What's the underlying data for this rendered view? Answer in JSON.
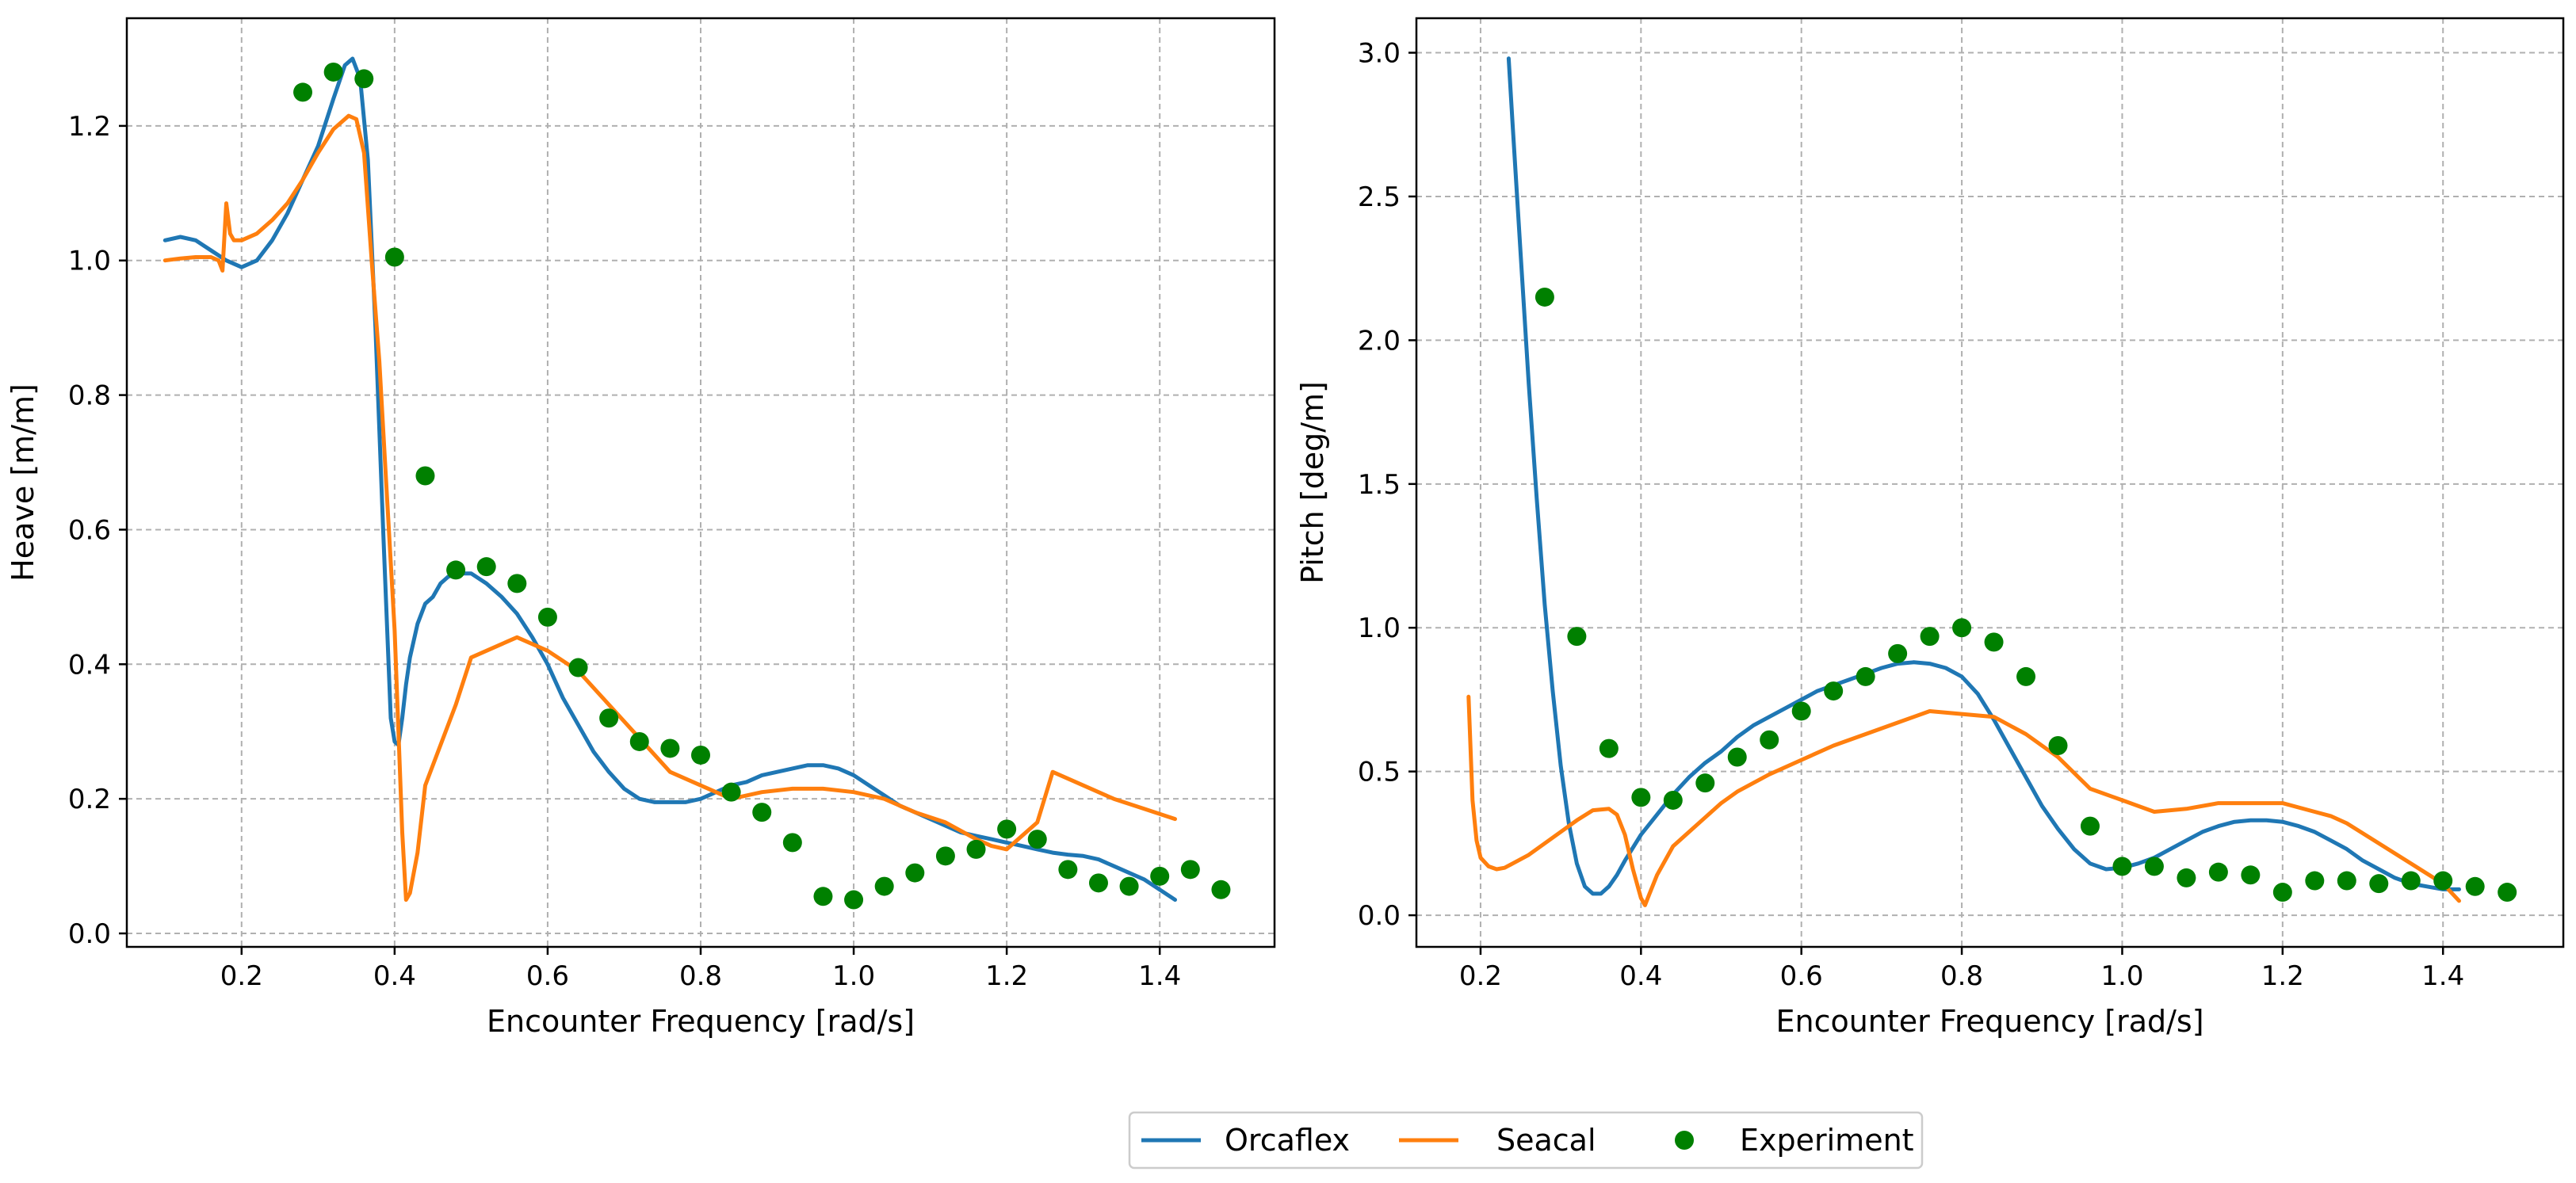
{
  "chart_data": [
    {
      "type": "line",
      "panel": "left",
      "xlabel": "Encounter Frequency [rad/s]",
      "ylabel": "Heave [m/m]",
      "xlim": [
        0.05,
        1.55
      ],
      "ylim": [
        -0.02,
        1.36
      ],
      "xticks": [
        0.2,
        0.4,
        0.6,
        0.8,
        1.0,
        1.2,
        1.4
      ],
      "xtick_labels": [
        "0.2",
        "0.4",
        "0.6",
        "0.8",
        "1.0",
        "1.2",
        "1.4"
      ],
      "yticks": [
        0.0,
        0.2,
        0.4,
        0.6,
        0.8,
        1.0,
        1.2
      ],
      "ytick_labels": [
        "0.0",
        "0.2",
        "0.4",
        "0.6",
        "0.8",
        "1.0",
        "1.2"
      ],
      "grid": true,
      "series": [
        {
          "name": "Orcaflex",
          "kind": "line",
          "color": "#1f77b4",
          "x": [
            0.1,
            0.12,
            0.14,
            0.16,
            0.18,
            0.2,
            0.22,
            0.24,
            0.26,
            0.28,
            0.3,
            0.32,
            0.335,
            0.345,
            0.355,
            0.365,
            0.375,
            0.385,
            0.395,
            0.4,
            0.405,
            0.41,
            0.415,
            0.42,
            0.43,
            0.44,
            0.45,
            0.46,
            0.47,
            0.48,
            0.5,
            0.52,
            0.54,
            0.56,
            0.58,
            0.6,
            0.62,
            0.64,
            0.66,
            0.68,
            0.7,
            0.72,
            0.74,
            0.76,
            0.78,
            0.8,
            0.82,
            0.84,
            0.86,
            0.88,
            0.9,
            0.92,
            0.94,
            0.96,
            0.98,
            1.0,
            1.02,
            1.04,
            1.06,
            1.08,
            1.1,
            1.12,
            1.14,
            1.16,
            1.18,
            1.2,
            1.22,
            1.24,
            1.26,
            1.28,
            1.3,
            1.32,
            1.34,
            1.36,
            1.38,
            1.4,
            1.42
          ],
          "values": [
            1.03,
            1.035,
            1.03,
            1.015,
            1.0,
            0.99,
            1.0,
            1.03,
            1.07,
            1.12,
            1.17,
            1.24,
            1.29,
            1.3,
            1.27,
            1.15,
            0.9,
            0.6,
            0.32,
            0.285,
            0.28,
            0.32,
            0.37,
            0.41,
            0.46,
            0.49,
            0.5,
            0.52,
            0.53,
            0.535,
            0.535,
            0.52,
            0.5,
            0.475,
            0.44,
            0.4,
            0.35,
            0.31,
            0.27,
            0.24,
            0.215,
            0.2,
            0.195,
            0.195,
            0.195,
            0.2,
            0.21,
            0.22,
            0.225,
            0.235,
            0.24,
            0.245,
            0.25,
            0.25,
            0.245,
            0.235,
            0.22,
            0.205,
            0.19,
            0.18,
            0.17,
            0.16,
            0.15,
            0.145,
            0.14,
            0.135,
            0.13,
            0.125,
            0.12,
            0.117,
            0.115,
            0.11,
            0.1,
            0.09,
            0.08,
            0.065,
            0.05
          ]
        },
        {
          "name": "Seacal",
          "kind": "line",
          "color": "#ff7f0e",
          "x": [
            0.1,
            0.12,
            0.14,
            0.16,
            0.17,
            0.175,
            0.18,
            0.185,
            0.19,
            0.2,
            0.22,
            0.24,
            0.26,
            0.28,
            0.3,
            0.32,
            0.34,
            0.35,
            0.36,
            0.37,
            0.38,
            0.39,
            0.4,
            0.41,
            0.415,
            0.42,
            0.43,
            0.44,
            0.46,
            0.48,
            0.5,
            0.52,
            0.54,
            0.56,
            0.58,
            0.6,
            0.64,
            0.68,
            0.72,
            0.76,
            0.8,
            0.84,
            0.88,
            0.92,
            0.96,
            1.0,
            1.04,
            1.08,
            1.12,
            1.16,
            1.18,
            1.2,
            1.24,
            1.26,
            1.28,
            1.3,
            1.34,
            1.38,
            1.42
          ],
          "values": [
            1.0,
            1.003,
            1.005,
            1.005,
            1.0,
            0.985,
            1.085,
            1.04,
            1.03,
            1.03,
            1.04,
            1.06,
            1.085,
            1.12,
            1.16,
            1.195,
            1.215,
            1.21,
            1.16,
            1.0,
            0.85,
            0.65,
            0.45,
            0.15,
            0.05,
            0.06,
            0.12,
            0.22,
            0.28,
            0.34,
            0.41,
            0.42,
            0.43,
            0.44,
            0.43,
            0.42,
            0.39,
            0.34,
            0.29,
            0.24,
            0.22,
            0.2,
            0.21,
            0.215,
            0.215,
            0.21,
            0.2,
            0.18,
            0.165,
            0.14,
            0.13,
            0.125,
            0.165,
            0.24,
            0.23,
            0.22,
            0.2,
            0.185,
            0.17
          ]
        },
        {
          "name": "Experiment",
          "kind": "scatter",
          "color": "#008000",
          "x": [
            0.28,
            0.32,
            0.36,
            0.4,
            0.44,
            0.48,
            0.52,
            0.56,
            0.6,
            0.64,
            0.68,
            0.72,
            0.76,
            0.8,
            0.84,
            0.88,
            0.92,
            0.96,
            1.0,
            1.04,
            1.08,
            1.12,
            1.16,
            1.2,
            1.24,
            1.28,
            1.32,
            1.36,
            1.4,
            1.44,
            1.48
          ],
          "values": [
            1.25,
            1.28,
            1.27,
            1.005,
            0.68,
            0.54,
            0.545,
            0.52,
            0.47,
            0.395,
            0.32,
            0.285,
            0.275,
            0.265,
            0.21,
            0.18,
            0.135,
            0.055,
            0.05,
            0.07,
            0.09,
            0.115,
            0.125,
            0.155,
            0.14,
            0.095,
            0.075,
            0.07,
            0.085,
            0.095,
            0.065
          ]
        }
      ]
    },
    {
      "type": "line",
      "panel": "right",
      "xlabel": "Encounter Frequency [rad/s]",
      "ylabel": "Pitch [deg/m]",
      "xlim": [
        0.12,
        1.55
      ],
      "ylim": [
        -0.11,
        3.12
      ],
      "xticks": [
        0.2,
        0.4,
        0.6,
        0.8,
        1.0,
        1.2,
        1.4
      ],
      "xtick_labels": [
        "0.2",
        "0.4",
        "0.6",
        "0.8",
        "1.0",
        "1.2",
        "1.4"
      ],
      "yticks": [
        0.0,
        0.5,
        1.0,
        1.5,
        2.0,
        2.5,
        3.0
      ],
      "ytick_labels": [
        "0.0",
        "0.5",
        "1.0",
        "1.5",
        "2.0",
        "2.5",
        "3.0"
      ],
      "grid": true,
      "series": [
        {
          "name": "Orcaflex",
          "kind": "line",
          "color": "#1f77b4",
          "x": [
            0.235,
            0.24,
            0.25,
            0.26,
            0.27,
            0.28,
            0.29,
            0.3,
            0.31,
            0.32,
            0.33,
            0.34,
            0.35,
            0.36,
            0.37,
            0.38,
            0.4,
            0.42,
            0.44,
            0.46,
            0.48,
            0.5,
            0.52,
            0.54,
            0.56,
            0.58,
            0.6,
            0.62,
            0.64,
            0.66,
            0.68,
            0.7,
            0.72,
            0.74,
            0.76,
            0.78,
            0.8,
            0.82,
            0.84,
            0.86,
            0.88,
            0.9,
            0.92,
            0.94,
            0.96,
            0.98,
            1.0,
            1.02,
            1.04,
            1.06,
            1.08,
            1.1,
            1.12,
            1.14,
            1.16,
            1.18,
            1.2,
            1.22,
            1.24,
            1.26,
            1.28,
            1.3,
            1.32,
            1.34,
            1.36,
            1.38,
            1.4,
            1.42
          ],
          "values": [
            2.98,
            2.75,
            2.3,
            1.85,
            1.45,
            1.08,
            0.78,
            0.52,
            0.32,
            0.18,
            0.1,
            0.075,
            0.075,
            0.1,
            0.14,
            0.19,
            0.28,
            0.35,
            0.42,
            0.48,
            0.53,
            0.57,
            0.62,
            0.66,
            0.69,
            0.72,
            0.75,
            0.78,
            0.8,
            0.82,
            0.84,
            0.86,
            0.875,
            0.88,
            0.875,
            0.86,
            0.83,
            0.77,
            0.68,
            0.58,
            0.48,
            0.38,
            0.3,
            0.23,
            0.18,
            0.16,
            0.165,
            0.18,
            0.2,
            0.23,
            0.26,
            0.29,
            0.31,
            0.325,
            0.33,
            0.33,
            0.325,
            0.31,
            0.29,
            0.26,
            0.23,
            0.19,
            0.16,
            0.13,
            0.11,
            0.1,
            0.09,
            0.09
          ]
        },
        {
          "name": "Seacal",
          "kind": "line",
          "color": "#ff7f0e",
          "x": [
            0.185,
            0.19,
            0.195,
            0.2,
            0.21,
            0.22,
            0.23,
            0.24,
            0.26,
            0.28,
            0.3,
            0.32,
            0.34,
            0.36,
            0.37,
            0.38,
            0.39,
            0.4,
            0.405,
            0.41,
            0.42,
            0.44,
            0.46,
            0.48,
            0.5,
            0.52,
            0.56,
            0.6,
            0.64,
            0.68,
            0.72,
            0.76,
            0.8,
            0.84,
            0.88,
            0.92,
            0.96,
            1.0,
            1.04,
            1.08,
            1.12,
            1.16,
            1.2,
            1.24,
            1.26,
            1.28,
            1.32,
            1.36,
            1.4,
            1.42
          ],
          "values": [
            0.76,
            0.4,
            0.26,
            0.2,
            0.17,
            0.16,
            0.165,
            0.18,
            0.21,
            0.25,
            0.29,
            0.33,
            0.365,
            0.37,
            0.35,
            0.28,
            0.16,
            0.06,
            0.035,
            0.07,
            0.14,
            0.24,
            0.29,
            0.34,
            0.39,
            0.43,
            0.49,
            0.54,
            0.59,
            0.63,
            0.67,
            0.71,
            0.7,
            0.69,
            0.63,
            0.55,
            0.44,
            0.4,
            0.36,
            0.37,
            0.39,
            0.39,
            0.39,
            0.36,
            0.345,
            0.32,
            0.25,
            0.18,
            0.11,
            0.05
          ]
        },
        {
          "name": "Experiment",
          "kind": "scatter",
          "color": "#008000",
          "x": [
            0.28,
            0.32,
            0.36,
            0.4,
            0.44,
            0.48,
            0.52,
            0.56,
            0.6,
            0.64,
            0.68,
            0.72,
            0.76,
            0.8,
            0.84,
            0.88,
            0.92,
            0.96,
            1.0,
            1.04,
            1.08,
            1.12,
            1.16,
            1.2,
            1.24,
            1.28,
            1.32,
            1.36,
            1.4,
            1.44,
            1.48
          ],
          "values": [
            2.15,
            0.97,
            0.58,
            0.41,
            0.4,
            0.46,
            0.55,
            0.61,
            0.71,
            0.78,
            0.83,
            0.91,
            0.97,
            1.0,
            0.95,
            0.83,
            0.59,
            0.31,
            0.17,
            0.17,
            0.13,
            0.15,
            0.14,
            0.08,
            0.12,
            0.12,
            0.11,
            0.12,
            0.12,
            0.1,
            0.08
          ]
        }
      ]
    }
  ],
  "legend": {
    "placement": "bottom-center",
    "entries": [
      {
        "label": "Orcaflex",
        "kind": "line",
        "color": "#1f77b4"
      },
      {
        "label": "Seacal",
        "kind": "line",
        "color": "#ff7f0e"
      },
      {
        "label": "Experiment",
        "kind": "scatter",
        "color": "#008000"
      }
    ]
  }
}
